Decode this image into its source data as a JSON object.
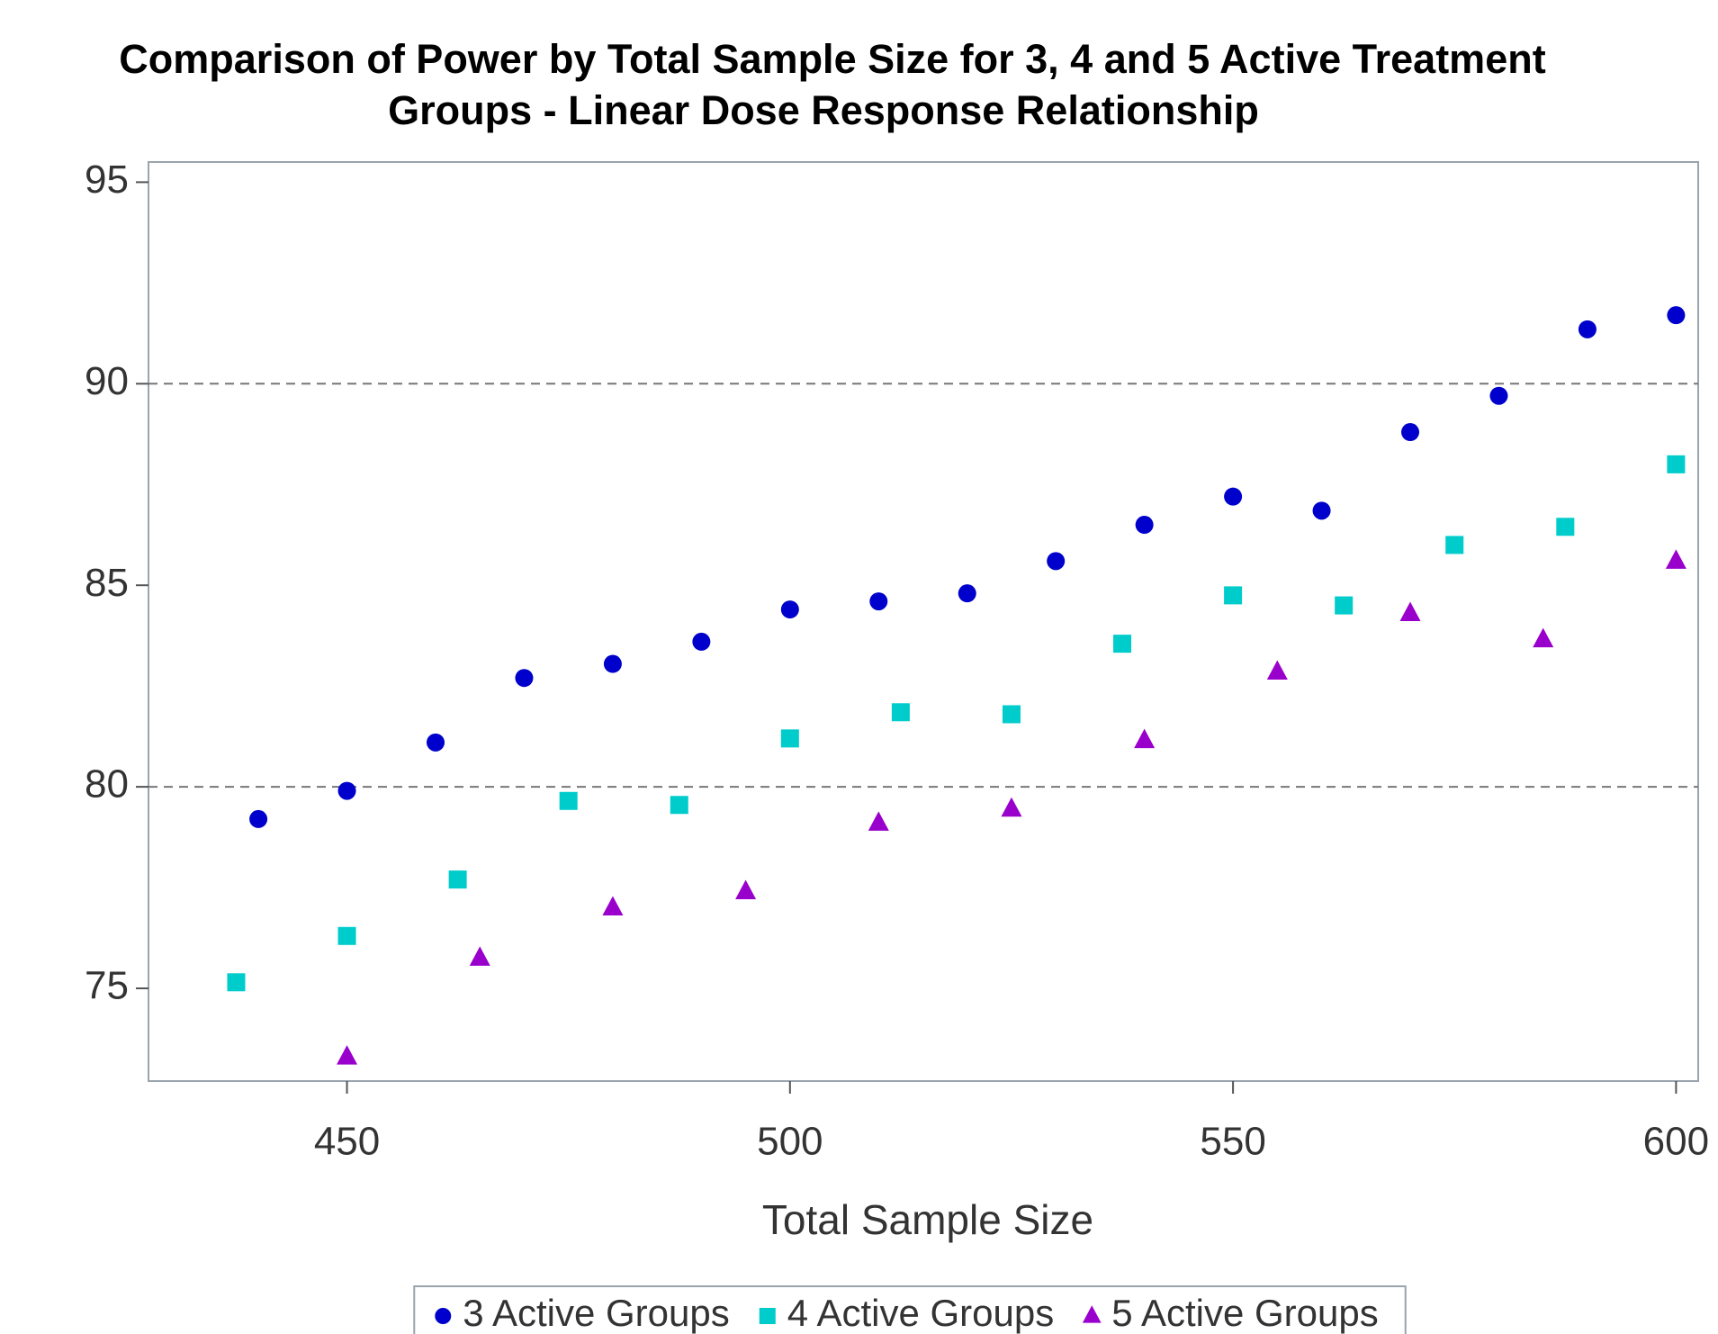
{
  "chart_data": {
    "type": "scatter",
    "title": [
      "Comparison of Power by Total Sample Size for 3, 4 and 5 Active Treatment",
      "Groups - Linear Dose Response Relationship"
    ],
    "x_label": "Total Sample Size",
    "xlim": [
      427.6,
      602.5
    ],
    "xticks": [
      450,
      500,
      550,
      600
    ],
    "ylim": [
      72.7,
      95.5
    ],
    "yticks": [
      75,
      80,
      85,
      90,
      95
    ],
    "reflines": [
      80,
      90
    ],
    "legend": "bottom",
    "series": [
      {
        "name": "3 Active Groups",
        "color": "#0000cc",
        "marker": "circle",
        "x": [
          440,
          450,
          460,
          470,
          480,
          490,
          500,
          510,
          520,
          530,
          540,
          550,
          560,
          570,
          580,
          590,
          600
        ],
        "values": [
          79.2,
          79.9,
          81.1,
          82.7,
          83.05,
          83.6,
          84.4,
          84.6,
          84.8,
          85.6,
          86.5,
          87.2,
          86.85,
          88.8,
          89.7,
          91.35,
          91.7
        ]
      },
      {
        "name": "4 Active Groups",
        "color": "#00cccc",
        "marker": "square",
        "x": [
          437.5,
          450,
          462.5,
          475,
          487.5,
          500,
          512.5,
          525,
          537.5,
          550,
          562.5,
          575,
          587.5,
          600
        ],
        "values": [
          75.15,
          76.3,
          77.7,
          79.65,
          79.55,
          81.2,
          81.85,
          81.8,
          83.55,
          84.75,
          84.5,
          86.0,
          86.45,
          88.0
        ]
      },
      {
        "name": "5 Active Groups",
        "color": "#9900cc",
        "marker": "triangle",
        "x": [
          450,
          465,
          480,
          495,
          510,
          525,
          540,
          555,
          570,
          585,
          600
        ],
        "values": [
          73.3,
          75.75,
          77.0,
          77.4,
          79.1,
          79.45,
          81.15,
          82.85,
          84.3,
          83.65,
          85.6
        ]
      }
    ]
  }
}
